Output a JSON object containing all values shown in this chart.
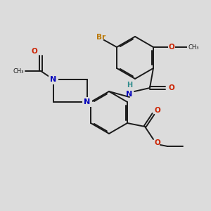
{
  "bg_color": "#dcdcdc",
  "bond_color": "#1a1a1a",
  "N_color": "#0000bb",
  "O_color": "#cc2200",
  "Br_color": "#bb7700",
  "H_color": "#2e8b8b",
  "lw": 1.4,
  "doff": 0.016,
  "xlim": [
    0,
    3.0
  ],
  "ylim": [
    0,
    3.0
  ]
}
